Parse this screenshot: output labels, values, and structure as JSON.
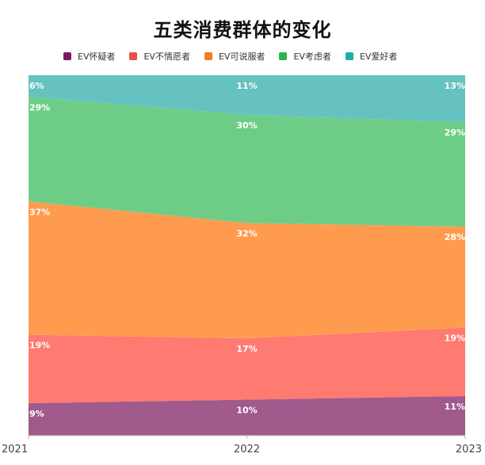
{
  "chart_data": {
    "type": "area",
    "title": "五类消费群体的变化",
    "stacked": true,
    "normalized": true,
    "categories": [
      "2021",
      "2022",
      "2023"
    ],
    "series": [
      {
        "name": "EV怀疑者",
        "values": [
          9,
          10,
          11
        ],
        "labels": [
          "9%",
          "10%",
          "11%"
        ],
        "color": "#a05a8c",
        "legend_color": "#7a1b5e"
      },
      {
        "name": "EV不情愿者",
        "values": [
          19,
          17,
          19
        ],
        "labels": [
          "19%",
          "17%",
          "19%"
        ],
        "color": "#ff7a70",
        "legend_color": "#f14b46"
      },
      {
        "name": "EV可说服者",
        "values": [
          37,
          32,
          28
        ],
        "labels": [
          "37%",
          "32%",
          "28%"
        ],
        "color": "#ff9b4f",
        "legend_color": "#f47c24"
      },
      {
        "name": "EV考虑者",
        "values": [
          29,
          30,
          29
        ],
        "labels": [
          "29%",
          "30%",
          "29%"
        ],
        "color": "#6dcd87",
        "legend_color": "#2eb150"
      },
      {
        "name": "EV爱好者",
        "values": [
          6,
          11,
          13
        ],
        "labels": [
          "6%",
          "11%",
          "13%"
        ],
        "color": "#66c2c0",
        "legend_color": "#25aaa6"
      }
    ],
    "ylim": [
      0,
      100
    ],
    "grid": false,
    "legend_position": "top"
  }
}
